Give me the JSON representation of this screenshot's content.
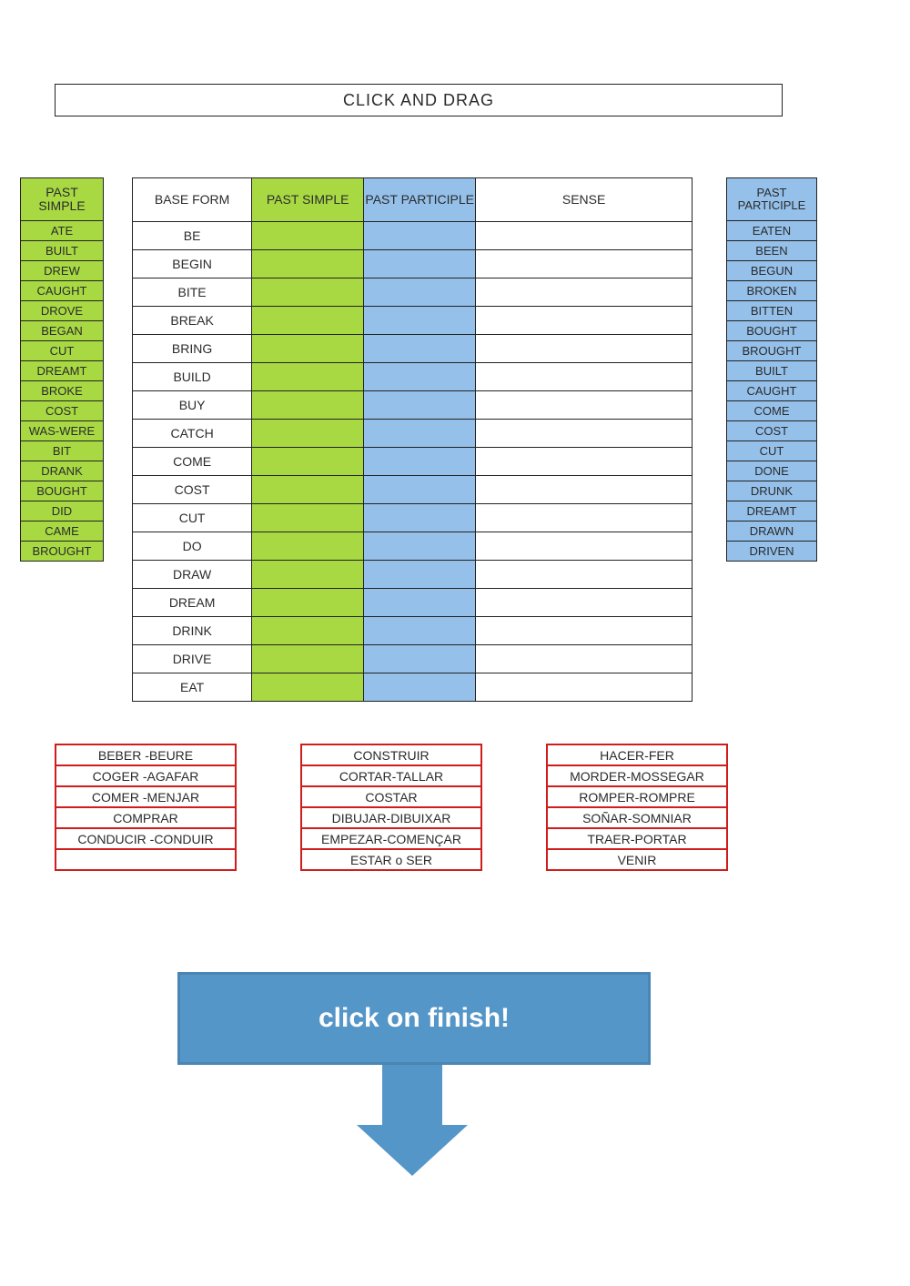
{
  "title": "CLICK AND DRAG",
  "colors": {
    "past_simple_bg": "#a8d943",
    "past_participle_bg": "#94c0ea",
    "sense_border": "#d11c1c",
    "finish_bg": "#5596c8",
    "border": "#222222"
  },
  "left": {
    "header": "PAST SIMPLE",
    "tiles": [
      "ATE",
      "BUILT",
      "DREW",
      "CAUGHT",
      "DROVE",
      "BEGAN",
      "CUT",
      "DREAMT",
      "BROKE",
      "COST",
      "WAS-WERE",
      "BIT",
      "DRANK",
      "BOUGHT",
      "DID",
      "CAME",
      "BROUGHT"
    ]
  },
  "right": {
    "header": "PAST PARTICIPLE",
    "tiles": [
      "EATEN",
      "BEEN",
      "BEGUN",
      "BROKEN",
      "BITTEN",
      "BOUGHT",
      "BROUGHT",
      "BUILT",
      "CAUGHT",
      "COME",
      "COST",
      "CUT",
      "DONE",
      "DRUNK",
      "DREAMT",
      "DRAWN",
      "DRIVEN"
    ]
  },
  "table": {
    "headers": {
      "base": "BASE FORM",
      "ps": "PAST SIMPLE",
      "pp": "PAST PARTICIPLE",
      "sense": "SENSE"
    },
    "base_forms": [
      "BE",
      "BEGIN",
      "BITE",
      "BREAK",
      "BRING",
      "BUILD",
      "BUY",
      "CATCH",
      "COME",
      "COST",
      "CUT",
      "DO",
      "DRAW",
      "DREAM",
      "DRINK",
      "DRIVE",
      "EAT"
    ]
  },
  "senses": {
    "col1": [
      "BEBER -BEURE",
      "COGER -AGAFAR",
      "COMER -MENJAR",
      "COMPRAR",
      "CONDUCIR -CONDUIR",
      ""
    ],
    "col2": [
      "CONSTRUIR",
      "CORTAR-TALLAR",
      "COSTAR",
      "DIBUJAR-DIBUIXAR",
      "EMPEZAR-COMENÇAR",
      "ESTAR o  SER"
    ],
    "col3": [
      "HACER-FER",
      "MORDER-MOSSEGAR",
      "ROMPER-ROMPRE",
      "SOÑAR-SOMNIAR",
      "TRAER-PORTAR",
      "VENIR"
    ]
  },
  "finish": {
    "label": "click on finish!"
  }
}
